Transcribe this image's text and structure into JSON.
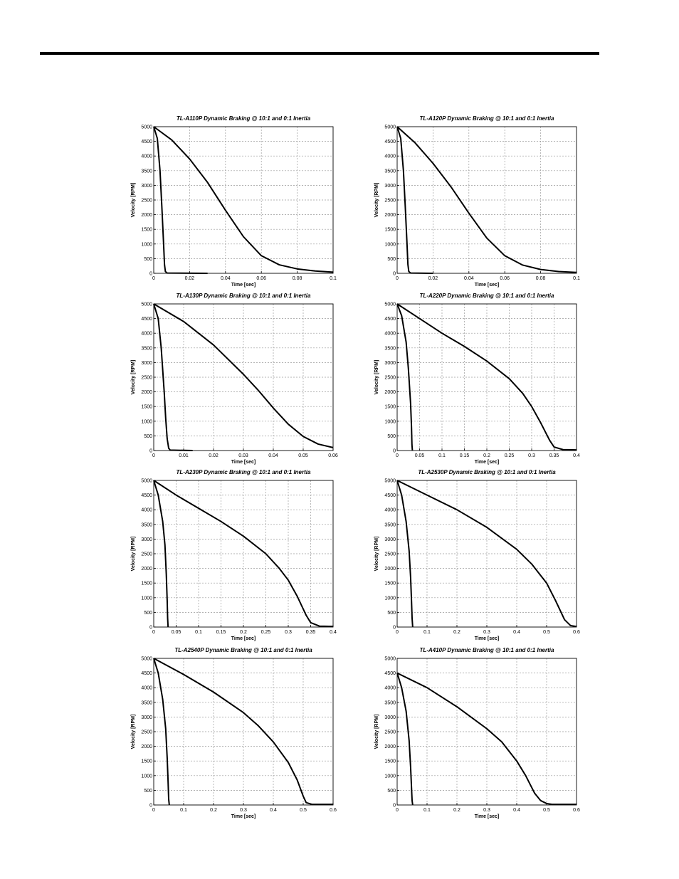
{
  "page": {
    "rule_color": "#000000"
  },
  "charts": [
    {
      "type": "line",
      "title": "TL-A110P Dynamic Braking @ 10:1 and 0:1 Inertia",
      "xlabel": "Time [sec]",
      "ylabel": "Velocity [RPM]",
      "xlim": [
        0,
        0.1
      ],
      "ylim": [
        0,
        5000
      ],
      "xticks": [
        0,
        0.02,
        0.04,
        0.06,
        0.08,
        0.1
      ],
      "xtick_labels": [
        "0",
        "0.02",
        "0.04",
        "0.06",
        "0.08",
        "0.1"
      ],
      "yticks": [
        0,
        500,
        1000,
        1500,
        2000,
        2500,
        3000,
        3500,
        4000,
        4500,
        5000
      ],
      "ytick_labels": [
        "0",
        "500",
        "1000",
        "1500",
        "2000",
        "2500",
        "3000",
        "3500",
        "4000",
        "4500",
        "5000"
      ],
      "grid": true,
      "series": [
        {
          "points": [
            [
              0,
              5000
            ],
            [
              0.002,
              4600
            ],
            [
              0.0035,
              3500
            ],
            [
              0.0045,
              2300
            ],
            [
              0.0055,
              1000
            ],
            [
              0.006,
              300
            ],
            [
              0.0065,
              60
            ],
            [
              0.0075,
              10
            ],
            [
              0.03,
              0
            ]
          ]
        },
        {
          "points": [
            [
              0,
              5000
            ],
            [
              0.01,
              4550
            ],
            [
              0.02,
              3900
            ],
            [
              0.03,
              3100
            ],
            [
              0.04,
              2150
            ],
            [
              0.05,
              1250
            ],
            [
              0.06,
              600
            ],
            [
              0.07,
              290
            ],
            [
              0.08,
              150
            ],
            [
              0.09,
              80
            ],
            [
              0.1,
              40
            ]
          ]
        }
      ]
    },
    {
      "type": "line",
      "title": "TL-A120P Dynamic Braking @ 10:1 and 0:1 Inertia",
      "xlabel": "Time [sec]",
      "ylabel": "Velocity [RPM]",
      "xlim": [
        0,
        0.1
      ],
      "ylim": [
        0,
        5000
      ],
      "xticks": [
        0,
        0.02,
        0.04,
        0.06,
        0.08,
        0.1
      ],
      "xtick_labels": [
        "0",
        "0.02",
        "0.04",
        "0.06",
        "0.08",
        "0.1"
      ],
      "yticks": [
        0,
        500,
        1000,
        1500,
        2000,
        2500,
        3000,
        3500,
        4000,
        4500,
        5000
      ],
      "ytick_labels": [
        "0",
        "500",
        "1000",
        "1500",
        "2000",
        "2500",
        "3000",
        "3500",
        "4000",
        "4500",
        "5000"
      ],
      "grid": true,
      "series": [
        {
          "points": [
            [
              0,
              5000
            ],
            [
              0.002,
              4600
            ],
            [
              0.0035,
              3500
            ],
            [
              0.0045,
              2300
            ],
            [
              0.0055,
              1000
            ],
            [
              0.006,
              300
            ],
            [
              0.0065,
              60
            ],
            [
              0.0075,
              10
            ],
            [
              0.02,
              0
            ]
          ]
        },
        {
          "points": [
            [
              0,
              5000
            ],
            [
              0.01,
              4450
            ],
            [
              0.02,
              3750
            ],
            [
              0.03,
              2950
            ],
            [
              0.04,
              2050
            ],
            [
              0.05,
              1200
            ],
            [
              0.06,
              600
            ],
            [
              0.07,
              280
            ],
            [
              0.08,
              130
            ],
            [
              0.09,
              60
            ],
            [
              0.1,
              30
            ]
          ]
        }
      ]
    },
    {
      "type": "line",
      "title": "TL-A130P Dynamic Braking @ 10:1 and 0:1 Inertia",
      "xlabel": "Time [sec]",
      "ylabel": "Velocity [RPM]",
      "xlim": [
        0,
        0.06
      ],
      "ylim": [
        0,
        5000
      ],
      "xticks": [
        0,
        0.01,
        0.02,
        0.03,
        0.04,
        0.05,
        0.06
      ],
      "xtick_labels": [
        "0",
        "0.01",
        "0.02",
        "0.03",
        "0.04",
        "0.05",
        "0.06"
      ],
      "yticks": [
        0,
        500,
        1000,
        1500,
        2000,
        2500,
        3000,
        3500,
        4000,
        4500,
        5000
      ],
      "ytick_labels": [
        "0",
        "500",
        "1000",
        "1500",
        "2000",
        "2500",
        "3000",
        "3500",
        "4000",
        "4500",
        "5000"
      ],
      "grid": true,
      "series": [
        {
          "points": [
            [
              0,
              5000
            ],
            [
              0.0015,
              4500
            ],
            [
              0.0025,
              3500
            ],
            [
              0.0035,
              2000
            ],
            [
              0.004,
              1100
            ],
            [
              0.0045,
              400
            ],
            [
              0.005,
              80
            ],
            [
              0.0055,
              15
            ],
            [
              0.013,
              0
            ]
          ]
        },
        {
          "points": [
            [
              0,
              5000
            ],
            [
              0.01,
              4400
            ],
            [
              0.02,
              3600
            ],
            [
              0.03,
              2600
            ],
            [
              0.035,
              2050
            ],
            [
              0.04,
              1450
            ],
            [
              0.045,
              900
            ],
            [
              0.05,
              480
            ],
            [
              0.055,
              220
            ],
            [
              0.06,
              100
            ]
          ]
        }
      ]
    },
    {
      "type": "line",
      "title": "TL-A220P Dynamic Braking @ 10:1 and 0:1 Inertia",
      "xlabel": "Time [sec]",
      "ylabel": "Velocity [RPM]",
      "xlim": [
        0,
        0.4
      ],
      "ylim": [
        0,
        5000
      ],
      "xticks": [
        0,
        0.05,
        0.1,
        0.15,
        0.2,
        0.25,
        0.3,
        0.35,
        0.4
      ],
      "xtick_labels": [
        "0",
        "0.05",
        "0.1",
        "0.15",
        "0.2",
        "0.25",
        "0.3",
        "0.35",
        "0.4"
      ],
      "yticks": [
        0,
        500,
        1000,
        1500,
        2000,
        2500,
        3000,
        3500,
        4000,
        4500,
        5000
      ],
      "ytick_labels": [
        "0",
        "500",
        "1000",
        "1500",
        "2000",
        "2500",
        "3000",
        "3500",
        "4000",
        "4500",
        "5000"
      ],
      "grid": true,
      "series": [
        {
          "points": [
            [
              0,
              5000
            ],
            [
              0.01,
              4600
            ],
            [
              0.02,
              3700
            ],
            [
              0.025,
              2800
            ],
            [
              0.03,
              1600
            ],
            [
              0.032,
              800
            ],
            [
              0.033,
              200
            ],
            [
              0.034,
              0
            ]
          ]
        },
        {
          "points": [
            [
              0,
              5000
            ],
            [
              0.05,
              4500
            ],
            [
              0.1,
              4000
            ],
            [
              0.15,
              3550
            ],
            [
              0.2,
              3050
            ],
            [
              0.25,
              2450
            ],
            [
              0.28,
              1950
            ],
            [
              0.3,
              1500
            ],
            [
              0.32,
              950
            ],
            [
              0.34,
              350
            ],
            [
              0.35,
              120
            ],
            [
              0.37,
              30
            ],
            [
              0.4,
              20
            ]
          ]
        }
      ]
    },
    {
      "type": "line",
      "title": "TL-A230P Dynamic Braking @ 10:1 and 0:1 Inertia",
      "xlabel": "Time [sec]",
      "ylabel": "Velocity [RPM]",
      "xlim": [
        0,
        0.4
      ],
      "ylim": [
        0,
        5000
      ],
      "xticks": [
        0,
        0.05,
        0.1,
        0.15,
        0.2,
        0.25,
        0.3,
        0.35,
        0.4
      ],
      "xtick_labels": [
        "0",
        "0.05",
        "0.1",
        "0.15",
        "0.2",
        "0.25",
        "0.3",
        "0.35",
        "0.4"
      ],
      "yticks": [
        0,
        500,
        1000,
        1500,
        2000,
        2500,
        3000,
        3500,
        4000,
        4500,
        5000
      ],
      "ytick_labels": [
        "0",
        "500",
        "1000",
        "1500",
        "2000",
        "2500",
        "3000",
        "3500",
        "4000",
        "4500",
        "5000"
      ],
      "grid": true,
      "series": [
        {
          "points": [
            [
              0,
              5000
            ],
            [
              0.01,
              4500
            ],
            [
              0.02,
              3600
            ],
            [
              0.025,
              2800
            ],
            [
              0.028,
              1800
            ],
            [
              0.03,
              900
            ],
            [
              0.031,
              300
            ],
            [
              0.032,
              0
            ]
          ]
        },
        {
          "points": [
            [
              0,
              5000
            ],
            [
              0.05,
              4500
            ],
            [
              0.1,
              4050
            ],
            [
              0.15,
              3600
            ],
            [
              0.2,
              3100
            ],
            [
              0.25,
              2500
            ],
            [
              0.28,
              2000
            ],
            [
              0.3,
              1600
            ],
            [
              0.32,
              1050
            ],
            [
              0.34,
              400
            ],
            [
              0.35,
              150
            ],
            [
              0.37,
              30
            ],
            [
              0.4,
              20
            ]
          ]
        }
      ]
    },
    {
      "type": "line",
      "title": "TL-A2530P Dynamic Braking @ 10:1 and 0:1 Inertia",
      "xlabel": "Time [sec]",
      "ylabel": "Velocity [RPM]",
      "xlim": [
        0,
        0.6
      ],
      "ylim": [
        0,
        5000
      ],
      "xticks": [
        0,
        0.1,
        0.2,
        0.3,
        0.4,
        0.5,
        0.6
      ],
      "xtick_labels": [
        "0",
        "0.1",
        "0.2",
        "0.3",
        "0.4",
        "0.5",
        "0.6"
      ],
      "yticks": [
        0,
        500,
        1000,
        1500,
        2000,
        2500,
        3000,
        3500,
        4000,
        4500,
        5000
      ],
      "ytick_labels": [
        "0",
        "500",
        "1000",
        "1500",
        "2000",
        "2500",
        "3000",
        "3500",
        "4000",
        "4500",
        "5000"
      ],
      "grid": true,
      "series": [
        {
          "points": [
            [
              0,
              5000
            ],
            [
              0.015,
              4500
            ],
            [
              0.03,
              3600
            ],
            [
              0.04,
              2600
            ],
            [
              0.045,
              1700
            ],
            [
              0.048,
              900
            ],
            [
              0.05,
              300
            ],
            [
              0.052,
              0
            ]
          ]
        },
        {
          "points": [
            [
              0,
              5000
            ],
            [
              0.1,
              4500
            ],
            [
              0.2,
              4000
            ],
            [
              0.3,
              3400
            ],
            [
              0.4,
              2650
            ],
            [
              0.45,
              2150
            ],
            [
              0.5,
              1500
            ],
            [
              0.53,
              900
            ],
            [
              0.56,
              250
            ],
            [
              0.58,
              50
            ],
            [
              0.6,
              20
            ]
          ]
        }
      ]
    },
    {
      "type": "line",
      "title": "TL-A2540P Dynamic Braking @ 10:1 and 0:1 Inertia",
      "xlabel": "Time [sec]",
      "ylabel": "Velocity [RPM]",
      "xlim": [
        0,
        0.6
      ],
      "ylim": [
        0,
        5000
      ],
      "xticks": [
        0,
        0.1,
        0.2,
        0.3,
        0.4,
        0.5,
        0.6
      ],
      "xtick_labels": [
        "0",
        "0.1",
        "0.2",
        "0.3",
        "0.4",
        "0.5",
        "0.6"
      ],
      "yticks": [
        0,
        500,
        1000,
        1500,
        2000,
        2500,
        3000,
        3500,
        4000,
        4500,
        5000
      ],
      "ytick_labels": [
        "0",
        "500",
        "1000",
        "1500",
        "2000",
        "2500",
        "3000",
        "3500",
        "4000",
        "4500",
        "5000"
      ],
      "grid": true,
      "series": [
        {
          "points": [
            [
              0,
              5000
            ],
            [
              0.015,
              4500
            ],
            [
              0.03,
              3600
            ],
            [
              0.04,
              2600
            ],
            [
              0.045,
              1600
            ],
            [
              0.048,
              800
            ],
            [
              0.05,
              200
            ],
            [
              0.052,
              0
            ]
          ]
        },
        {
          "points": [
            [
              0,
              5000
            ],
            [
              0.1,
              4450
            ],
            [
              0.2,
              3850
            ],
            [
              0.3,
              3150
            ],
            [
              0.35,
              2700
            ],
            [
              0.4,
              2150
            ],
            [
              0.45,
              1450
            ],
            [
              0.48,
              850
            ],
            [
              0.5,
              300
            ],
            [
              0.51,
              80
            ],
            [
              0.53,
              20
            ],
            [
              0.6,
              20
            ]
          ]
        }
      ]
    },
    {
      "type": "line",
      "title": "TL-A410P Dynamic Braking @ 10:1 and 0:1 Inertia",
      "xlabel": "Time [sec]",
      "ylabel": "Velocity [RPM]",
      "xlim": [
        0,
        0.6
      ],
      "ylim": [
        0,
        5000
      ],
      "xticks": [
        0,
        0.1,
        0.2,
        0.3,
        0.4,
        0.5,
        0.6
      ],
      "xtick_labels": [
        "0",
        "0.1",
        "0.2",
        "0.3",
        "0.4",
        "0.5",
        "0.6"
      ],
      "yticks": [
        0,
        500,
        1000,
        1500,
        2000,
        2500,
        3000,
        3500,
        4000,
        4500,
        5000
      ],
      "ytick_labels": [
        "0",
        "500",
        "1000",
        "1500",
        "2000",
        "2500",
        "3000",
        "3500",
        "4000",
        "4500",
        "5000"
      ],
      "grid": true,
      "series": [
        {
          "points": [
            [
              0,
              4500
            ],
            [
              0.015,
              4000
            ],
            [
              0.03,
              3200
            ],
            [
              0.04,
              2200
            ],
            [
              0.045,
              1300
            ],
            [
              0.048,
              600
            ],
            [
              0.05,
              150
            ],
            [
              0.052,
              0
            ]
          ]
        },
        {
          "points": [
            [
              0,
              4500
            ],
            [
              0.1,
              4000
            ],
            [
              0.2,
              3350
            ],
            [
              0.3,
              2600
            ],
            [
              0.35,
              2150
            ],
            [
              0.4,
              1500
            ],
            [
              0.43,
              1000
            ],
            [
              0.46,
              400
            ],
            [
              0.48,
              150
            ],
            [
              0.5,
              50
            ],
            [
              0.52,
              20
            ],
            [
              0.6,
              20
            ]
          ]
        }
      ]
    }
  ]
}
